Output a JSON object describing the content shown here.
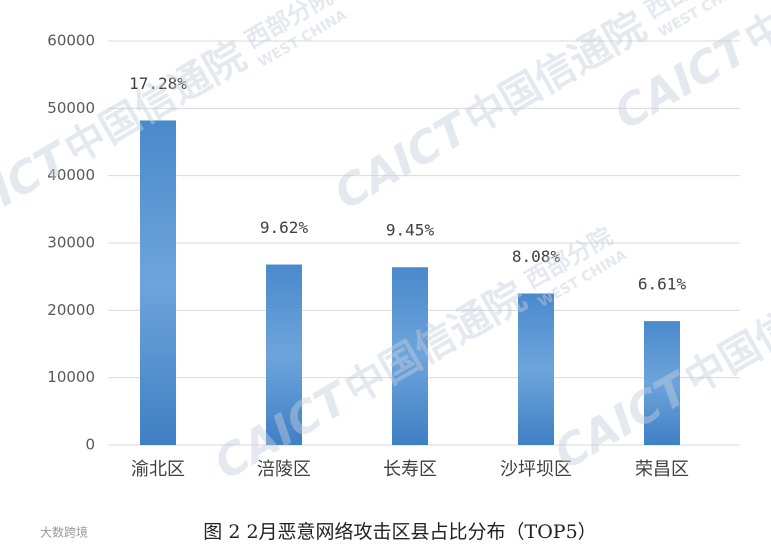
{
  "chart_data": {
    "type": "bar",
    "categories": [
      "渝北区",
      "涪陵区",
      "长寿区",
      "沙坪坝区",
      "荣昌区"
    ],
    "values": [
      48200,
      26800,
      26400,
      22500,
      18400
    ],
    "annotations": [
      "17.28%",
      "9.62%",
      "9.45%",
      "8.08%",
      "6.61%"
    ],
    "color": "#5b9bd5",
    "ylim": [
      0,
      60000
    ],
    "yticks": [
      0,
      10000,
      20000,
      30000,
      40000,
      50000,
      60000
    ],
    "grid": true,
    "caption": "图 2  2月恶意网络攻击区县占比分布（TOP5）",
    "watermark": [
      "CAICT",
      "中国信通院",
      "西部分院",
      "WEST CHINA"
    ],
    "logo": "大数跨境"
  }
}
